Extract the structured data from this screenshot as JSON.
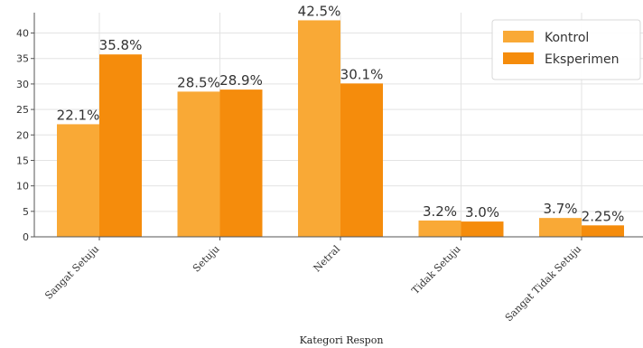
{
  "chart_data": {
    "type": "bar",
    "title": "",
    "xlabel": "Kategori Respon",
    "ylabel": "",
    "categories": [
      "Sangat Setuju",
      "Setuju",
      "Netral",
      "Tidak Setuju",
      "Sangat Tidak Setuju"
    ],
    "series": [
      {
        "name": "Kontrol",
        "values": [
          22.1,
          28.5,
          42.5,
          3.2,
          3.7
        ],
        "labels": [
          "22.1%",
          "28.5%",
          "42.5%",
          "3.2%",
          "3.7%"
        ],
        "color": "#F9A936"
      },
      {
        "name": "Eksperimen",
        "values": [
          35.8,
          28.9,
          30.1,
          3.0,
          2.25
        ],
        "labels": [
          "35.8%",
          "28.9%",
          "30.1%",
          "3.0%",
          "2.25%"
        ],
        "color": "#F58C0C"
      }
    ],
    "ylim": [
      0,
      44
    ],
    "yticks": [
      0,
      5,
      10,
      15,
      20,
      25,
      30,
      35,
      40
    ],
    "grid": true,
    "legend_position": "top-right"
  }
}
